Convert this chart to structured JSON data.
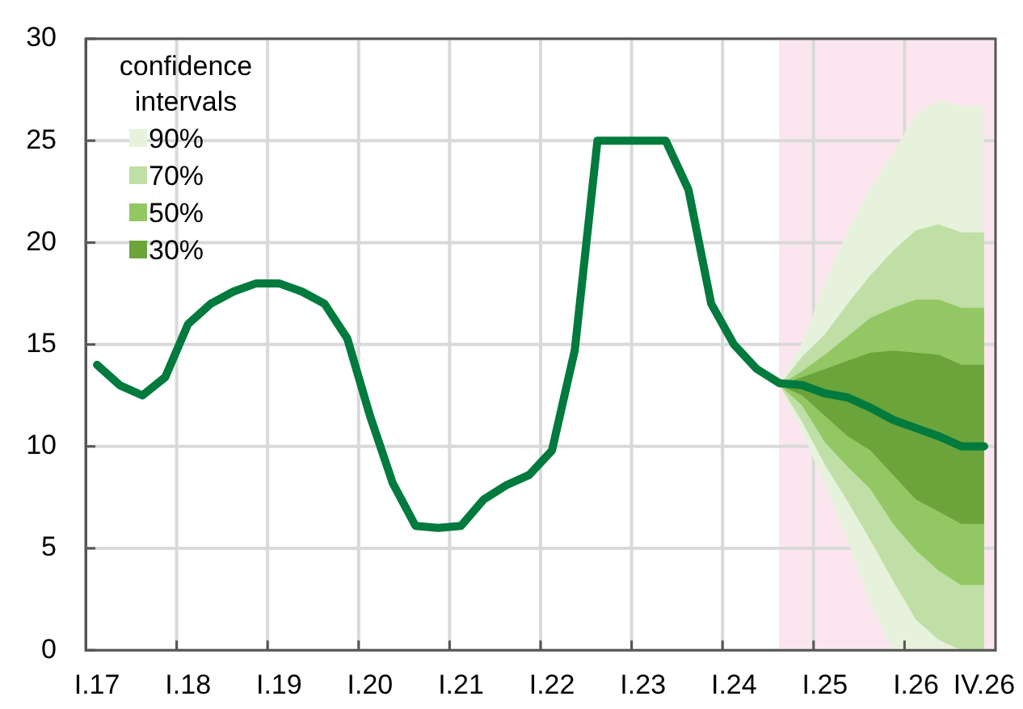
{
  "chart_data": {
    "type": "line",
    "legend": "top left",
    "legend_title": "confidence intervals",
    "grid": true,
    "marker": "none",
    "categories": [
      "I.17",
      null,
      null,
      null,
      "I.18",
      null,
      null,
      null,
      "I.19",
      null,
      null,
      null,
      "I.20",
      null,
      null,
      null,
      "I.21",
      null,
      null,
      null,
      "I.22",
      null,
      null,
      null,
      "I.23",
      null,
      null,
      null,
      "I.24",
      null,
      null,
      null,
      "I.25",
      null,
      null,
      null,
      "I.26",
      null,
      null,
      "IV.26"
    ],
    "ylim": [
      0,
      30
    ],
    "yticks": [
      0,
      5,
      10,
      15,
      20,
      25,
      30
    ],
    "series": [
      {
        "name": "90%",
        "type": "area",
        "color": "#e6f2dc",
        "values": [
          null,
          null,
          null,
          null,
          null,
          null,
          null,
          null,
          null,
          null,
          null,
          null,
          null,
          null,
          null,
          null,
          null,
          null,
          null,
          null,
          null,
          null,
          null,
          null,
          null,
          null,
          null,
          null,
          null,
          null,
          null,
          null,
          null,
          null,
          null,
          null,
          null,
          null,
          null,
          null
        ],
        "lower": [
          null,
          null,
          null,
          null,
          null,
          null,
          null,
          null,
          null,
          null,
          null,
          null,
          null,
          null,
          null,
          null,
          null,
          null,
          null,
          null,
          null,
          null,
          null,
          null,
          null,
          null,
          null,
          null,
          null,
          null,
          13.0,
          10.7,
          8.1,
          5.4,
          2.3,
          0,
          0,
          0,
          0,
          0
        ],
        "upper": [
          null,
          null,
          null,
          null,
          null,
          null,
          null,
          null,
          null,
          null,
          null,
          null,
          null,
          null,
          null,
          null,
          null,
          null,
          null,
          null,
          null,
          null,
          null,
          null,
          null,
          null,
          null,
          null,
          null,
          null,
          13.0,
          15.1,
          18.0,
          20.6,
          22.7,
          24.4,
          26.3,
          27.0,
          26.7,
          26.7
        ]
      },
      {
        "name": "70%",
        "type": "area",
        "color": "#bfdfa6",
        "values": [
          null,
          null,
          null,
          null,
          null,
          null,
          null,
          null,
          null,
          null,
          null,
          null,
          null,
          null,
          null,
          null,
          null,
          null,
          null,
          null,
          null,
          null,
          null,
          null,
          null,
          null,
          null,
          null,
          null,
          null,
          null,
          null,
          null,
          null,
          null,
          null,
          null,
          null,
          null,
          null
        ],
        "lower": [
          null,
          null,
          null,
          null,
          null,
          null,
          null,
          null,
          null,
          null,
          null,
          null,
          null,
          null,
          null,
          null,
          null,
          null,
          null,
          null,
          null,
          null,
          null,
          null,
          null,
          null,
          null,
          null,
          null,
          null,
          13.0,
          11.2,
          9.1,
          7.3,
          5.4,
          3.4,
          1.5,
          0.5,
          0,
          0
        ],
        "upper": [
          null,
          null,
          null,
          null,
          null,
          null,
          null,
          null,
          null,
          null,
          null,
          null,
          null,
          null,
          null,
          null,
          null,
          null,
          null,
          null,
          null,
          null,
          null,
          null,
          null,
          null,
          null,
          null,
          null,
          null,
          13.0,
          14.4,
          15.5,
          17.0,
          18.4,
          19.6,
          20.6,
          20.9,
          20.5,
          20.5
        ]
      },
      {
        "name": "50%",
        "type": "area",
        "color": "#93c763",
        "values": [
          null,
          null,
          null,
          null,
          null,
          null,
          null,
          null,
          null,
          null,
          null,
          null,
          null,
          null,
          null,
          null,
          null,
          null,
          null,
          null,
          null,
          null,
          null,
          null,
          null,
          null,
          null,
          null,
          null,
          null,
          null,
          null,
          null,
          null,
          null,
          null,
          null,
          null,
          null,
          null
        ],
        "lower": [
          null,
          null,
          null,
          null,
          null,
          null,
          null,
          null,
          null,
          null,
          null,
          null,
          null,
          null,
          null,
          null,
          null,
          null,
          null,
          null,
          null,
          null,
          null,
          null,
          null,
          null,
          null,
          null,
          null,
          null,
          13.0,
          12.0,
          10.2,
          9.0,
          7.9,
          6.2,
          4.9,
          3.9,
          3.2,
          3.2
        ],
        "upper": [
          null,
          null,
          null,
          null,
          null,
          null,
          null,
          null,
          null,
          null,
          null,
          null,
          null,
          null,
          null,
          null,
          null,
          null,
          null,
          null,
          null,
          null,
          null,
          null,
          null,
          null,
          null,
          null,
          null,
          null,
          13.0,
          13.7,
          14.5,
          15.4,
          16.3,
          16.8,
          17.2,
          17.2,
          16.8,
          16.8
        ]
      },
      {
        "name": "30%",
        "type": "area",
        "color": "#6aa43a",
        "values": [
          null,
          null,
          null,
          null,
          null,
          null,
          null,
          null,
          null,
          null,
          null,
          null,
          null,
          null,
          null,
          null,
          null,
          null,
          null,
          null,
          null,
          null,
          null,
          null,
          null,
          null,
          null,
          null,
          null,
          null,
          null,
          null,
          null,
          null,
          null,
          null,
          null,
          null,
          null,
          null
        ],
        "lower": [
          null,
          null,
          null,
          null,
          null,
          null,
          null,
          null,
          null,
          null,
          null,
          null,
          null,
          null,
          null,
          null,
          null,
          null,
          null,
          null,
          null,
          null,
          null,
          null,
          null,
          null,
          null,
          null,
          null,
          null,
          13.0,
          12.5,
          11.5,
          10.5,
          9.8,
          8.6,
          7.4,
          6.8,
          6.2,
          6.2
        ],
        "upper": [
          null,
          null,
          null,
          null,
          null,
          null,
          null,
          null,
          null,
          null,
          null,
          null,
          null,
          null,
          null,
          null,
          null,
          null,
          null,
          null,
          null,
          null,
          null,
          null,
          null,
          null,
          null,
          null,
          null,
          null,
          13.0,
          13.4,
          13.8,
          14.2,
          14.6,
          14.7,
          14.6,
          14.5,
          14.0,
          14.0
        ]
      },
      {
        "color": "#007a3d",
        "values": [
          14.0,
          13.0,
          12.5,
          13.4,
          16.0,
          17.0,
          17.6,
          18.0,
          18.0,
          17.6,
          17.0,
          15.3,
          11.5,
          8.2,
          6.1,
          6.0,
          6.1,
          7.4,
          8.1,
          8.6,
          9.8,
          14.7,
          25.0,
          25.0,
          25.0,
          25.0,
          22.6,
          17.0,
          15.0,
          13.8,
          13.1,
          13.0,
          12.6,
          12.4,
          11.9,
          11.3,
          10.9,
          10.5,
          10.0,
          10.0
        ]
      }
    ]
  }
}
